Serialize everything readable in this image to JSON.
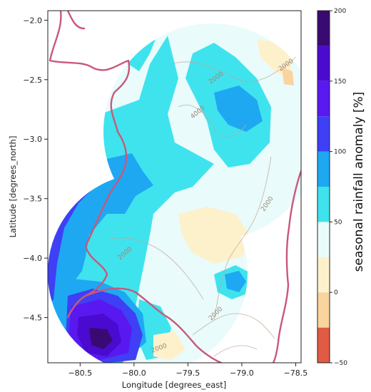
{
  "chart_data": {
    "type": "heatmap",
    "title": "",
    "xlabel": "Longitude [degrees_east]",
    "ylabel": "Latitude [degrees_north]",
    "xlim": [
      -80.8,
      -78.45
    ],
    "ylim": [
      -4.88,
      -1.92
    ],
    "xticks": [
      -80.5,
      -80.0,
      -79.5,
      -79.0,
      -78.5
    ],
    "xtick_labels": [
      "−80.5",
      "−80.0",
      "−79.5",
      "−79.0",
      "−78.5"
    ],
    "yticks": [
      -2.0,
      -2.5,
      -3.0,
      -3.5,
      -4.0,
      -4.5
    ],
    "ytick_labels": [
      "−2.0",
      "−2.5",
      "−3.0",
      "−3.5",
      "−4.0",
      "−4.5"
    ],
    "grid": false,
    "colorbar": {
      "label": "seasonal rainfall anomaly [%]",
      "range": [
        -50,
        200
      ],
      "bounds": [
        -50,
        -25,
        0,
        25,
        50,
        75,
        100,
        125,
        150,
        175,
        200
      ],
      "colors": [
        "#e05a44",
        "#f9d49e",
        "#fdf1cb",
        "#e9fbfb",
        "#3fe3ee",
        "#1ea8f2",
        "#3f3ff5",
        "#5a18f0",
        "#4b0ad0",
        "#3a0a73"
      ],
      "tick_values": [
        -50,
        0,
        50,
        100,
        150,
        200
      ],
      "tick_labels": [
        "−50",
        "0",
        "50",
        "100",
        "150",
        "200"
      ]
    },
    "radar_domains": [
      {
        "center_lon": -79.4,
        "center_lat": -3.05,
        "radius_deg": 1.1
      },
      {
        "center_lon": -80.1,
        "center_lat": -4.1,
        "radius_deg": 0.8
      }
    ],
    "anomaly_regions": [
      {
        "lon": -80.3,
        "lat": -4.75,
        "anomaly": 190
      },
      {
        "lon": -80.25,
        "lat": -4.55,
        "anomaly": 150
      },
      {
        "lon": -80.45,
        "lat": -4.3,
        "anomaly": 110
      },
      {
        "lon": -80.6,
        "lat": -3.95,
        "anomaly": 95
      },
      {
        "lon": -80.2,
        "lat": -3.45,
        "anomaly": 75
      },
      {
        "lon": -79.7,
        "lat": -3.25,
        "anomaly": 60
      },
      {
        "lon": -79.2,
        "lat": -3.0,
        "anomaly": 62
      },
      {
        "lon": -79.5,
        "lat": -2.35,
        "anomaly": 55
      },
      {
        "lon": -79.3,
        "lat": -3.85,
        "anomaly": 10
      },
      {
        "lon": -79.0,
        "lat": -2.9,
        "anomaly": 30
      },
      {
        "lon": -79.1,
        "lat": -4.3,
        "anomaly": 85
      },
      {
        "lon": -79.6,
        "lat": -4.3,
        "anomaly": 40
      }
    ],
    "topography_contour_label": "2000",
    "topography_contour_label_extra": "4000"
  }
}
